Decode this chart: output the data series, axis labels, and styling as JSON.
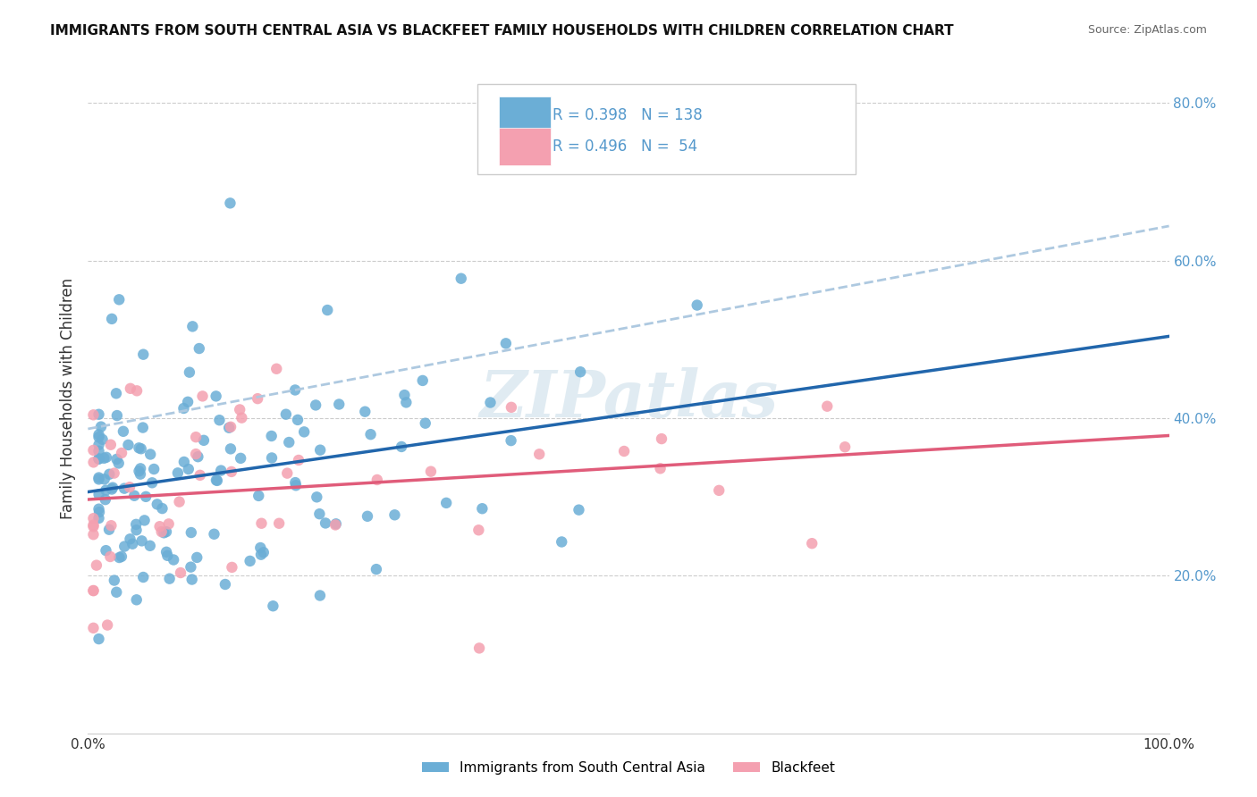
{
  "title": "IMMIGRANTS FROM SOUTH CENTRAL ASIA VS BLACKFEET FAMILY HOUSEHOLDS WITH CHILDREN CORRELATION CHART",
  "source": "Source: ZipAtlas.com",
  "ylabel": "Family Households with Children",
  "xlim": [
    0,
    1.0
  ],
  "ylim": [
    0,
    0.85
  ],
  "x_tick_positions": [
    0.0,
    0.2,
    0.4,
    0.6,
    0.8,
    1.0
  ],
  "x_tick_labels": [
    "0.0%",
    "",
    "",
    "",
    "",
    "100.0%"
  ],
  "y_ticks_right": [
    0.2,
    0.4,
    0.6,
    0.8
  ],
  "y_tick_labels_right": [
    "20.0%",
    "40.0%",
    "60.0%",
    "80.0%"
  ],
  "legend_blue_R": "R = 0.398",
  "legend_blue_N": "N = 138",
  "legend_pink_R": "R = 0.496",
  "legend_pink_N": "N =  54",
  "blue_color": "#6baed6",
  "pink_color": "#f4a0b0",
  "blue_line_color": "#2166ac",
  "pink_line_color": "#e05c7a",
  "blue_dash_color": "#aec9e0",
  "watermark": "ZIPatlas",
  "label_blue": "Immigrants from South Central Asia",
  "label_pink": "Blackfeet",
  "right_tick_color": "#5599cc",
  "title_color": "#111111",
  "source_color": "#666666"
}
